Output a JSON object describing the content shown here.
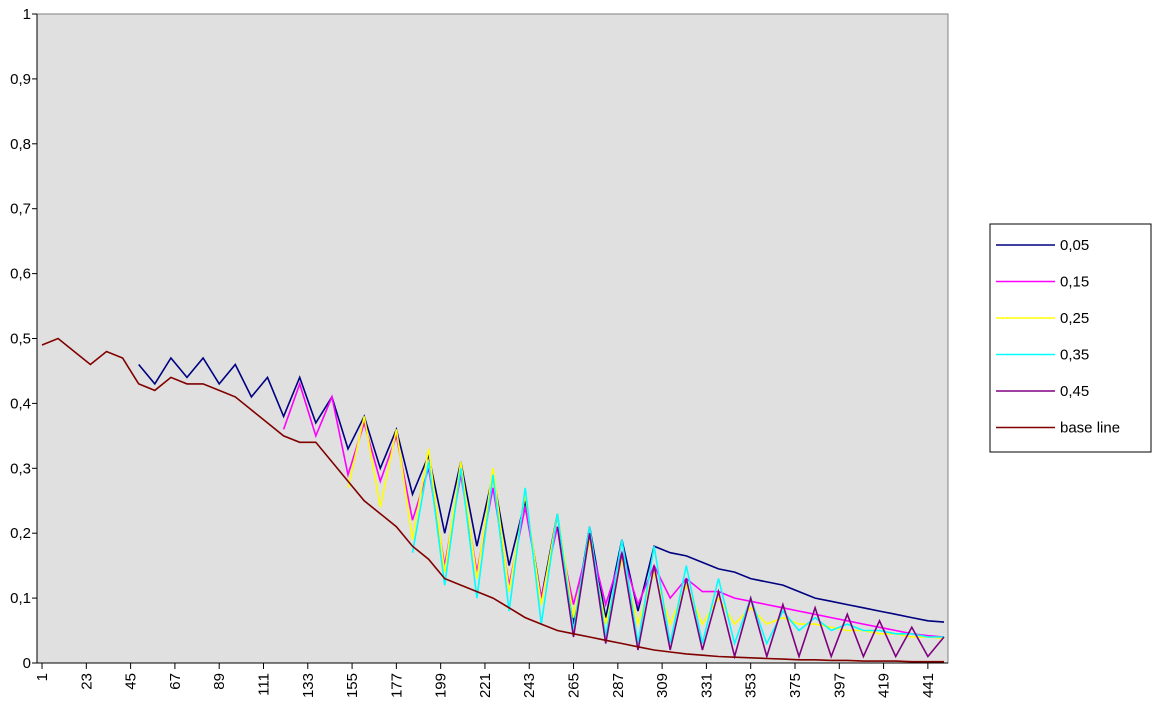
{
  "chart_data": {
    "type": "line",
    "x": [
      1,
      9,
      17,
      25,
      33,
      41,
      49,
      57,
      65,
      73,
      81,
      89,
      97,
      105,
      113,
      121,
      129,
      137,
      145,
      153,
      161,
      169,
      177,
      185,
      193,
      201,
      209,
      217,
      225,
      233,
      241,
      249,
      257,
      265,
      273,
      281,
      289,
      297,
      305,
      313,
      321,
      329,
      337,
      345,
      353,
      361,
      369,
      377,
      385,
      393,
      401,
      409,
      417,
      425,
      433,
      441,
      449
    ],
    "xlim": [
      -1.5,
      451
    ],
    "xticks": [
      1,
      23,
      45,
      67,
      89,
      111,
      133,
      155,
      177,
      199,
      221,
      243,
      265,
      287,
      309,
      331,
      353,
      375,
      397,
      419,
      441
    ],
    "ylim": [
      0,
      1
    ],
    "yticks": [
      0,
      {
        "value": 0.1,
        "label": "0,1"
      },
      {
        "value": 0.2,
        "label": "0,2"
      },
      {
        "value": 0.3,
        "label": "0,3"
      },
      {
        "value": 0.4,
        "label": "0,4"
      },
      {
        "value": 0.5,
        "label": "0,5"
      },
      {
        "value": 0.6,
        "label": "0,6"
      },
      {
        "value": 0.7,
        "label": "0,7"
      },
      {
        "value": 0.8,
        "label": "0,8"
      },
      {
        "value": 0.9,
        "label": "0,9"
      },
      1
    ],
    "legend": "right",
    "series": [
      {
        "name": "0,05",
        "color": "#000080",
        "values": [
          null,
          null,
          null,
          null,
          null,
          null,
          0.46,
          0.43,
          0.47,
          0.44,
          0.47,
          0.43,
          0.46,
          0.41,
          0.44,
          0.38,
          0.44,
          0.37,
          0.41,
          0.33,
          0.38,
          0.3,
          0.36,
          0.26,
          0.32,
          0.2,
          0.31,
          0.18,
          0.29,
          0.15,
          0.25,
          0.1,
          0.23,
          0.06,
          0.21,
          0.07,
          0.19,
          0.08,
          0.18,
          0.17,
          0.165,
          0.155,
          0.145,
          0.14,
          0.13,
          0.125,
          0.12,
          0.11,
          0.1,
          0.095,
          0.09,
          0.085,
          0.08,
          0.075,
          0.07,
          0.065,
          0.063
        ]
      },
      {
        "name": "0,15",
        "color": "#ff00ff",
        "values": [
          null,
          null,
          null,
          null,
          null,
          null,
          null,
          null,
          null,
          null,
          null,
          null,
          null,
          null,
          null,
          0.36,
          0.43,
          0.35,
          0.41,
          0.29,
          0.37,
          0.28,
          0.35,
          0.22,
          0.3,
          0.15,
          0.29,
          0.14,
          0.27,
          0.12,
          0.24,
          0.1,
          0.21,
          0.09,
          0.19,
          0.09,
          0.17,
          0.09,
          0.15,
          0.1,
          0.13,
          0.11,
          0.11,
          0.1,
          0.095,
          0.09,
          0.085,
          0.08,
          0.075,
          0.07,
          0.065,
          0.06,
          0.055,
          0.05,
          0.045,
          0.042,
          0.04
        ]
      },
      {
        "name": "0,25",
        "color": "#ffff00",
        "values": [
          null,
          null,
          null,
          null,
          null,
          null,
          null,
          null,
          null,
          null,
          null,
          null,
          null,
          null,
          null,
          null,
          null,
          null,
          null,
          0.27,
          0.38,
          0.24,
          0.36,
          0.19,
          0.33,
          0.14,
          0.31,
          0.13,
          0.3,
          0.11,
          0.26,
          0.09,
          0.23,
          0.07,
          0.19,
          0.06,
          0.16,
          0.06,
          0.14,
          0.06,
          0.12,
          0.06,
          0.1,
          0.06,
          0.085,
          0.06,
          0.07,
          0.06,
          0.06,
          0.055,
          0.05,
          0.05,
          0.045,
          0.045,
          0.04,
          0.04,
          0.038
        ]
      },
      {
        "name": "0,35",
        "color": "#00ffff",
        "values": [
          null,
          null,
          null,
          null,
          null,
          null,
          null,
          null,
          null,
          null,
          null,
          null,
          null,
          null,
          null,
          null,
          null,
          null,
          null,
          null,
          null,
          null,
          null,
          0.17,
          0.31,
          0.12,
          0.3,
          0.1,
          0.29,
          0.08,
          0.27,
          0.06,
          0.23,
          0.05,
          0.21,
          0.04,
          0.19,
          0.03,
          0.18,
          0.03,
          0.15,
          0.03,
          0.13,
          0.03,
          0.1,
          0.03,
          0.08,
          0.05,
          0.07,
          0.05,
          0.06,
          0.05,
          0.05,
          0.045,
          0.045,
          0.04,
          0.04
        ]
      },
      {
        "name": "0,45",
        "color": "#800080",
        "values": [
          null,
          null,
          null,
          null,
          null,
          null,
          null,
          null,
          null,
          null,
          null,
          null,
          null,
          null,
          null,
          null,
          null,
          null,
          null,
          null,
          null,
          null,
          null,
          null,
          null,
          null,
          null,
          null,
          null,
          null,
          null,
          null,
          0.21,
          0.04,
          0.2,
          0.03,
          0.17,
          0.02,
          0.15,
          0.02,
          0.13,
          0.02,
          0.11,
          0.01,
          0.1,
          0.01,
          0.09,
          0.01,
          0.085,
          0.01,
          0.075,
          0.01,
          0.065,
          0.01,
          0.055,
          0.01,
          0.04
        ]
      },
      {
        "name": "base line",
        "color": "#800000",
        "values": [
          0.49,
          0.5,
          0.48,
          0.46,
          0.48,
          0.47,
          0.43,
          0.42,
          0.44,
          0.43,
          0.43,
          0.42,
          0.41,
          0.39,
          0.37,
          0.35,
          0.34,
          0.34,
          0.31,
          0.28,
          0.25,
          0.23,
          0.21,
          0.18,
          0.16,
          0.13,
          0.12,
          0.11,
          0.1,
          0.085,
          0.07,
          0.06,
          0.05,
          0.045,
          0.04,
          0.035,
          0.03,
          0.025,
          0.02,
          0.017,
          0.014,
          0.012,
          0.01,
          0.009,
          0.008,
          0.007,
          0.006,
          0.005,
          0.005,
          0.004,
          0.004,
          0.003,
          0.003,
          0.003,
          0.002,
          0.002,
          0.002
        ]
      }
    ]
  }
}
